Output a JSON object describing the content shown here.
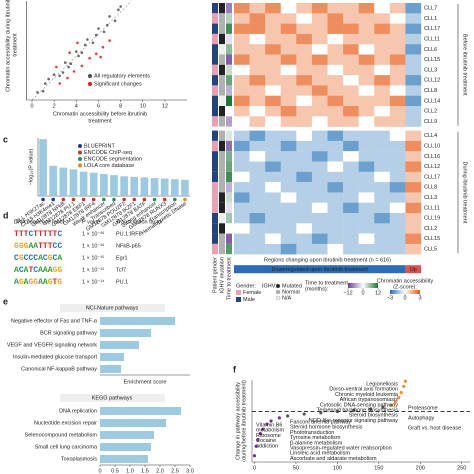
{
  "panel_labels": [
    "c",
    "d",
    "e",
    "f"
  ],
  "table": {
    "header": [
      "DNA sequence motif",
      "P value",
      "Transcription factor"
    ],
    "rows": [
      [
        "TTTCTTTTTC",
        "1 × 10⁻²⁶",
        "PU.1:IRF8"
      ],
      [
        "GGGAATTTCC",
        "1 × 10⁻¹⁶",
        "NFkB-p65"
      ],
      [
        "CGCCCACGCA",
        "1 × 10⁻¹⁵",
        "Egr1"
      ],
      [
        "ACATCAAAGG",
        "1 × 10⁻¹⁵",
        "Tcf7"
      ],
      [
        "AGAGGAAGTG",
        "1 × 10⁻¹⁴",
        "PU.1"
      ]
    ]
  },
  "chart_data": [
    {
      "type": "scatter",
      "xlabel": [
        "Chromatin accessibility before ibrutinib",
        "treatment"
      ],
      "ylabel": [
        "Chromatin accessibility during ibrutinib",
        "treatment"
      ],
      "xlim": [
        -0.5,
        14
      ],
      "ylim": [
        0,
        9
      ],
      "xticks": [
        0,
        2,
        4,
        6,
        8,
        10,
        12
      ],
      "series": [
        {
          "name": "All regulatory elements",
          "color": "#4d4d4d",
          "x": [
            0.5,
            1,
            1.5,
            2,
            2.5,
            3,
            3.5,
            4,
            4.5,
            5,
            5.5,
            6,
            6.5,
            7,
            7.5,
            8,
            2.8,
            4.2,
            5.8,
            3.3,
            6.8,
            1.2,
            7.8,
            4.8
          ],
          "values": [
            0.7,
            0.8,
            1.9,
            2.3,
            2.2,
            3.4,
            3.3,
            4.4,
            4.3,
            5.5,
            5.2,
            6.5,
            6.2,
            7.6,
            7.2,
            8.5,
            2.5,
            4.0,
            5.9,
            3.0,
            6.8,
            1.5,
            8.2,
            5.0
          ]
        },
        {
          "name": "Significant changes",
          "color": "#e41a1c",
          "x": [
            2.5,
            3.2,
            3.8,
            4.5,
            5.2,
            5.8,
            6.4,
            7,
            4.1,
            3.4,
            6.2,
            2.2
          ],
          "values": [
            1.5,
            2.0,
            2.6,
            3.1,
            3.8,
            4.2,
            4.8,
            5.4,
            5.2,
            4.3,
            3.9,
            3.0
          ]
        }
      ]
    },
    {
      "type": "heatmap",
      "rows": [
        "CLL7",
        "CLL1",
        "CLL17",
        "CLL11",
        "CLL6",
        "CLL15",
        "CLL3",
        "CLL12",
        "CLL8",
        "CLL14",
        "CLL2",
        "CLL9",
        "CLL4",
        "CLL10",
        "CLL16",
        "CLL12",
        "CLL17",
        "CLL8",
        "CLL3",
        "CLL11",
        "CLL19",
        "CLL2",
        "CLL15",
        "CLL5"
      ],
      "row_groups": [
        {
          "label": "Before ibrutinib treatment",
          "count": 12
        },
        {
          "label": "During ibrutinib treatment",
          "count": 12
        }
      ],
      "col_groups": [
        {
          "label": "Downregulated upon ibrutinib treatment",
          "color": "#2a6db5",
          "count": 11
        },
        {
          "label": "Up",
          "color": "#d9534f",
          "count": 1
        }
      ],
      "xlabel": "Regions changing upon ibrutinib treatment (n = 616)",
      "values": [
        [
          2,
          1,
          2,
          0,
          1,
          2,
          1,
          1,
          2,
          0,
          1,
          -2
        ],
        [
          1,
          2,
          1,
          1,
          0,
          1,
          2,
          1,
          1,
          1,
          0,
          -1
        ],
        [
          2,
          2,
          1,
          2,
          1,
          1,
          2,
          2,
          1,
          2,
          1,
          -2
        ],
        [
          1,
          0,
          1,
          1,
          2,
          1,
          0,
          1,
          1,
          1,
          1,
          -1
        ],
        [
          1,
          1,
          2,
          1,
          1,
          0,
          1,
          2,
          0,
          1,
          1,
          -2
        ],
        [
          2,
          1,
          1,
          2,
          1,
          2,
          1,
          1,
          2,
          1,
          2,
          -1
        ],
        [
          0,
          1,
          1,
          0,
          1,
          1,
          0,
          1,
          1,
          0,
          1,
          -1
        ],
        [
          1,
          2,
          1,
          1,
          2,
          1,
          1,
          0,
          1,
          2,
          1,
          -2
        ],
        [
          1,
          1,
          0,
          1,
          1,
          2,
          1,
          1,
          0,
          1,
          0,
          -1
        ],
        [
          2,
          1,
          2,
          1,
          0,
          1,
          2,
          1,
          1,
          1,
          2,
          -2
        ],
        [
          1,
          0,
          1,
          2,
          1,
          1,
          1,
          2,
          1,
          0,
          1,
          -1
        ],
        [
          0,
          1,
          0,
          1,
          1,
          0,
          1,
          1,
          0,
          1,
          1,
          -1
        ],
        [
          -1,
          -2,
          -1,
          -1,
          0,
          -1,
          -2,
          -1,
          -1,
          -1,
          0,
          1
        ],
        [
          -2,
          -1,
          -1,
          -2,
          -1,
          -1,
          -1,
          -2,
          -1,
          -1,
          -1,
          2
        ],
        [
          -1,
          0,
          -1,
          -1,
          -1,
          -2,
          -1,
          0,
          -1,
          -1,
          -1,
          1
        ],
        [
          -1,
          -1,
          -2,
          -1,
          -1,
          -1,
          0,
          -1,
          -2,
          -1,
          -1,
          2
        ],
        [
          0,
          -1,
          -1,
          -1,
          -2,
          -1,
          -1,
          -1,
          -1,
          0,
          -1,
          1
        ],
        [
          -1,
          -1,
          0,
          -1,
          -1,
          -1,
          -2,
          -1,
          -1,
          -1,
          -2,
          2
        ],
        [
          -2,
          -1,
          -1,
          0,
          -1,
          -1,
          -1,
          -1,
          0,
          -1,
          -1,
          1
        ],
        [
          -1,
          -1,
          -1,
          -1,
          -1,
          0,
          -1,
          -2,
          -1,
          -1,
          0,
          2
        ],
        [
          -1,
          -2,
          -1,
          -1,
          -1,
          -1,
          -1,
          -1,
          -1,
          -2,
          -1,
          1
        ],
        [
          0,
          -1,
          -1,
          -1,
          0,
          -1,
          -1,
          -1,
          -1,
          -1,
          -1,
          1
        ],
        [
          -1,
          -1,
          0,
          -1,
          -1,
          -2,
          -1,
          -1,
          0,
          -1,
          -1,
          2
        ],
        [
          -1,
          -1,
          -1,
          -2,
          -1,
          -1,
          0,
          -1,
          -1,
          -1,
          -1,
          1
        ]
      ],
      "colors": [
        "#2171b5",
        "#ffffff",
        "#e6550d"
      ],
      "zlim": [
        -3,
        3
      ],
      "zticks": [
        {
          "value": -3,
          "label": "−3"
        },
        0,
        3
      ],
      "zlabel": [
        "Chromatin accessibility",
        "(Z-score):"
      ],
      "annotation_labels": [
        "Patient gender",
        "IGHV mutation",
        "Time to treatment"
      ],
      "gender_title": "Gender:",
      "gender_legend": [
        {
          "name": "Female",
          "color": "#e8a0b4"
        },
        {
          "name": "Male",
          "color": "#24437a"
        }
      ],
      "gender": [
        1,
        0,
        1,
        0,
        1,
        1,
        0,
        1,
        0,
        1,
        1,
        0,
        1,
        0,
        1,
        1,
        1,
        0,
        0,
        0,
        1,
        1,
        1,
        0
      ],
      "ighv_title": "IGHV:",
      "ighv_legend": [
        {
          "name": "Mutated",
          "color": "#222222"
        },
        {
          "name": "Normal",
          "color": "#b0b0b0"
        },
        {
          "name": "N/A",
          "color": "#eeeeee"
        }
      ],
      "ighv": [
        0,
        1,
        1,
        0,
        2,
        1,
        0,
        1,
        1,
        2,
        0,
        1,
        1,
        0,
        1,
        1,
        1,
        1,
        0,
        0,
        2,
        0,
        1,
        1
      ],
      "time_title": [
        "Time to treatment",
        "(months):"
      ],
      "time": [
        -8,
        4,
        10,
        -2,
        6,
        -10,
        3,
        8,
        -5,
        12,
        0,
        -6,
        2,
        -9,
        7,
        8,
        10,
        -5,
        3,
        -2,
        5,
        0,
        -10,
        9
      ],
      "time_colors": [
        "#6a3d9a",
        "#ffffff",
        "#1b7837"
      ],
      "time_lim": [
        -12,
        12
      ],
      "time_ticks": [
        {
          "value": -12,
          "label": "−12"
        },
        0,
        12
      ]
    },
    {
      "type": "bar",
      "ylabel": "−log₁₀(P value)",
      "color": "#9ecae1",
      "ylim": [
        0,
        10
      ],
      "categories": [
        "CLL H3K27ac",
        "CD19 H3K4me1",
        "GM12878 NFkB",
        "GM12878 PU.1",
        "GM12878 EBF1",
        "GM12878 IRF4",
        "Weak enhancer",
        "Transcribed",
        "GM12878 POU2F2",
        "GM12878 IKZF1",
        "GM12878 BATF",
        "Strong enhancer",
        "GM12878 RUNX3",
        "Transcription",
        "Hematopoietic DNase"
      ],
      "values": [
        9.8,
        5.2,
        4.9,
        4.6,
        4.2,
        4.0,
        3.8,
        3.6,
        3.4,
        3.3,
        3.2,
        3.1,
        3.0,
        2.9,
        2.8
      ],
      "legend": [
        {
          "name": "BLUEPRINT",
          "color": "#1f3a93"
        },
        {
          "name": "ENCODE ChIP-seq",
          "color": "#c0392b"
        },
        {
          "name": "ENCODE segmentation",
          "color": "#2e8b57"
        },
        {
          "name": "LOLA core database",
          "color": "#e08a1e"
        }
      ],
      "source": [
        0,
        0,
        1,
        1,
        1,
        1,
        2,
        2,
        1,
        1,
        1,
        2,
        1,
        2,
        3
      ]
    },
    {
      "type": "hbar",
      "title": "NCI-Nature pathways",
      "xlabel": "Enrichment score",
      "color": "#9ecae1",
      "xlim": [
        0,
        3
      ],
      "categories": [
        "Negative effector of Fas and TNF-α",
        "BCR signaling pathway",
        "VEGF and VEGFR signaling network",
        "Insulin-mediated glucose transport",
        "Canonical NF-kappaB pathway"
      ],
      "values": [
        2.5,
        1.7,
        1.3,
        0.8,
        0.7
      ]
    },
    {
      "type": "hbar",
      "title": "KEGG pathways",
      "color": "#9ecae1",
      "xlim": [
        0,
        3
      ],
      "xticks": [
        0,
        0.5,
        {
          "value": 1,
          "label": "1.0"
        },
        1.5,
        {
          "value": 2,
          "label": "2.0"
        },
        2.5,
        {
          "value": 3,
          "label": "3.0"
        }
      ],
      "categories": [
        "DNA replication",
        "Nucleotide excision repair",
        "Selenocompound metabolism",
        "Small cell lung carcinoma",
        "Toxoplasmosis"
      ],
      "values": [
        2.7,
        2.2,
        1.8,
        1.7,
        1.6
      ]
    },
    {
      "type": "rank",
      "ylabel": [
        "Change in pathway accessibility",
        "(during/before ibrutinib treatment)"
      ],
      "xlim": [
        -3,
        260
      ],
      "ylim": [
        -0.8,
        0.5
      ],
      "xticks": [
        0,
        50,
        100,
        150,
        200,
        250
      ],
      "hline": 0,
      "series": [
        {
          "color": "#7b3294",
          "x": [
            0,
            2,
            4,
            7,
            10,
            15,
            20,
            30
          ],
          "values": [
            -0.7,
            -0.55,
            -0.45,
            -0.35,
            -0.28,
            -0.2,
            -0.15,
            -0.1
          ]
        },
        {
          "color": "#555555",
          "x": [
            40,
            60,
            80,
            100,
            120,
            140,
            155
          ],
          "values": [
            -0.07,
            -0.04,
            -0.02,
            0,
            0.02,
            0.04,
            0.07
          ]
        },
        {
          "color": "#f28e2b",
          "x": [
            165,
            170,
            174,
            177,
            180,
            182
          ],
          "values": [
            0.1,
            0.15,
            0.22,
            0.3,
            0.4,
            0.48
          ]
        }
      ],
      "annotations_up": [
        "Legionellosis",
        "Dorso-ventral axis formation",
        "Chronic myeloid leukemia",
        "African trypanosomiasis",
        "Cytosolic DNA-sensing pathway",
        "Terpenoid backbone biosynthesis",
        "Steroid biosynthesis",
        "NOD-like receptor signaling pathway"
      ],
      "annotations_right": [
        "Proteasome",
        "Autophagy",
        "Graft vs. host disease"
      ],
      "annotations_low": [
        "Vitamin B6",
        "metabolism",
        "Ribosome",
        "Cocaine",
        "addiction"
      ],
      "annotations_mid": [
        "Fanconi anemia pathway",
        "Steroid hormone biosynthesis",
        "Phototransduction",
        "Tyrosine metabolism",
        "β-alanine metabolism",
        "Vasopressin-regulated water reabsorption",
        "Linoleic acid metabolism",
        "Ascorbate and aldarate metabolism"
      ]
    }
  ]
}
